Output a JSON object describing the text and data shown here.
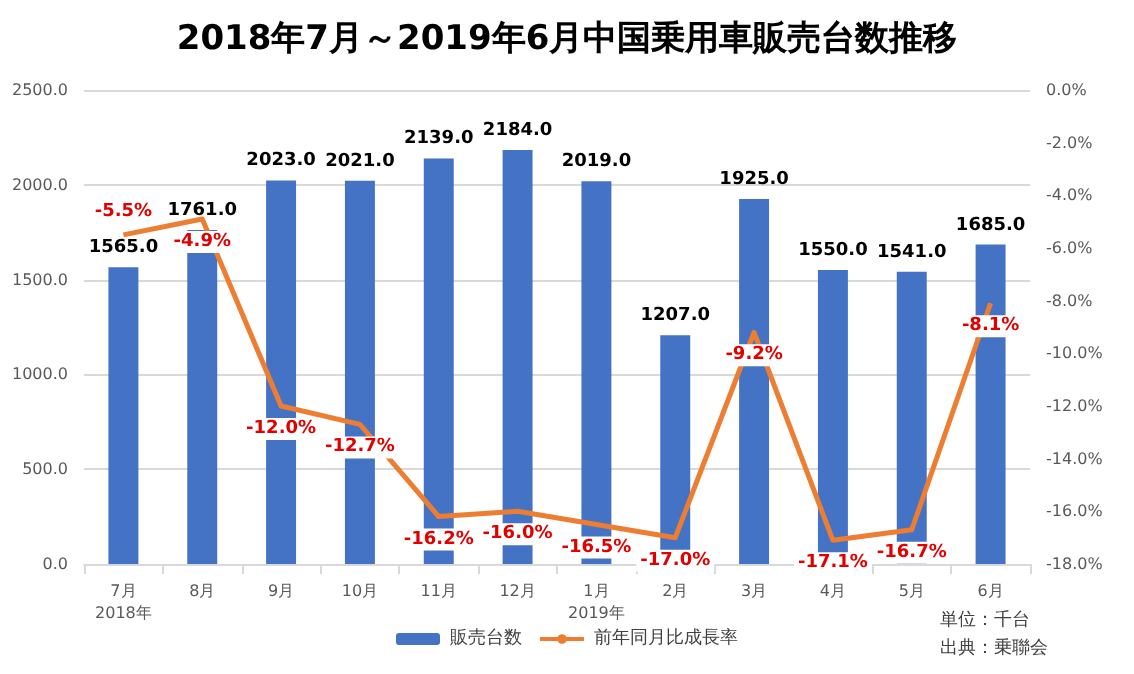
{
  "chart_data": {
    "type": "bar",
    "title": "2018年7月～2019年6月中国乗用車販売台数推移",
    "categories": [
      "7月\n2018年",
      "8月",
      "9月",
      "10月",
      "11月",
      "12月",
      "1月\n2019年",
      "2月",
      "3月",
      "4月",
      "5月",
      "6月"
    ],
    "series": [
      {
        "name": "販売台数",
        "color": "#4472c4",
        "values": [
          1565,
          1761,
          2023,
          2021,
          2139,
          2184,
          2019,
          1207,
          1925,
          1550,
          1541,
          1685
        ],
        "value_labels": [
          "1565.0",
          "1761.0",
          "2023.0",
          "2021.0",
          "2139.0",
          "2184.0",
          "2019.0",
          "1207.0",
          "1925.0",
          "1550.0",
          "1541.0",
          "1685.0"
        ]
      },
      {
        "name": "前年同月比成長率",
        "type": "line",
        "axis": "y2",
        "color": "#ed7d31",
        "marker": "none",
        "values": [
          -5.5,
          -4.9,
          -12.0,
          -12.7,
          -16.2,
          -16.0,
          -16.5,
          -17.0,
          -9.2,
          -17.1,
          -16.7,
          -8.1
        ],
        "value_labels": [
          "-5.5%",
          "-4.9%",
          "-12.0%",
          "-12.7%",
          "-16.2%",
          "-16.0%",
          "-16.5%",
          "-17.0%",
          "-9.2%",
          "-17.1%",
          "-16.7%",
          "-8.1%"
        ]
      }
    ],
    "ylim": [
      0,
      2500
    ],
    "yticks": [
      {
        "value": 0,
        "label": "0.0"
      },
      {
        "value": 500,
        "label": "500.0"
      },
      {
        "value": 1000,
        "label": "1000.0"
      },
      {
        "value": 1500,
        "label": "1500.0"
      },
      {
        "value": 2000,
        "label": "2000.0"
      },
      {
        "value": 2500,
        "label": "2500.0"
      }
    ],
    "y2lim": [
      -18,
      0
    ],
    "y2ticks": [
      {
        "value": 0,
        "label": "0.0%"
      },
      {
        "value": -2,
        "label": "-2.0%"
      },
      {
        "value": -4,
        "label": "-4.0%"
      },
      {
        "value": -6,
        "label": "-6.0%"
      },
      {
        "value": -8,
        "label": "-8.0%"
      },
      {
        "value": -10,
        "label": "-10.0%"
      },
      {
        "value": -12,
        "label": "-12.0%"
      },
      {
        "value": -14,
        "label": "-14.0%"
      },
      {
        "value": -16,
        "label": "-16.0%"
      },
      {
        "value": -18,
        "label": "-18.0%"
      }
    ],
    "grid": "y",
    "legend": "bottom",
    "annotations": [
      "単位：千台",
      "出典：乗聯会"
    ]
  }
}
